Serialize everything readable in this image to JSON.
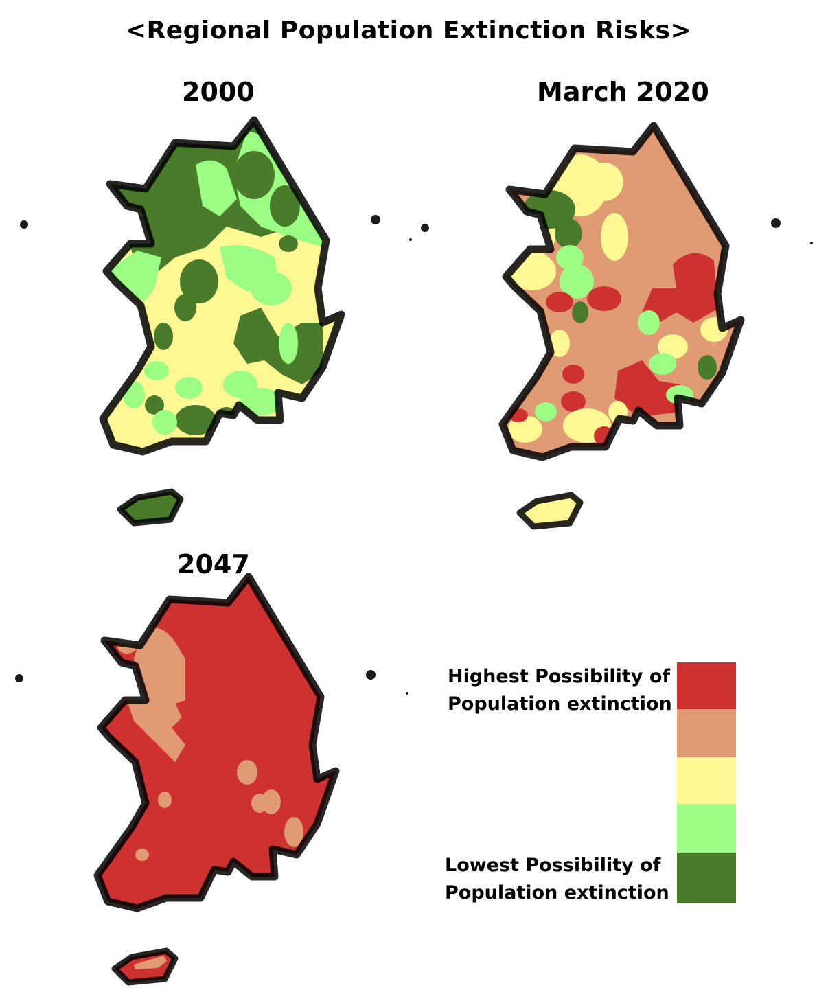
{
  "title": "<Regional Population Extinction Risks>",
  "panels": [
    {
      "label": "2000"
    },
    {
      "label": "March 2020"
    },
    {
      "label": "2047"
    }
  ],
  "legend": {
    "high_label_line1": "Highest Possibility of",
    "high_label_line2": "Population extinction",
    "low_label_line1": "Lowest Possibility of",
    "low_label_line2": "Population extinction",
    "levels": [
      {
        "color": "#cd3230"
      },
      {
        "color": "#e09a74"
      },
      {
        "color": "#fdf894"
      },
      {
        "color": "#9cfd84"
      },
      {
        "color": "#4a7b2a"
      }
    ]
  }
}
